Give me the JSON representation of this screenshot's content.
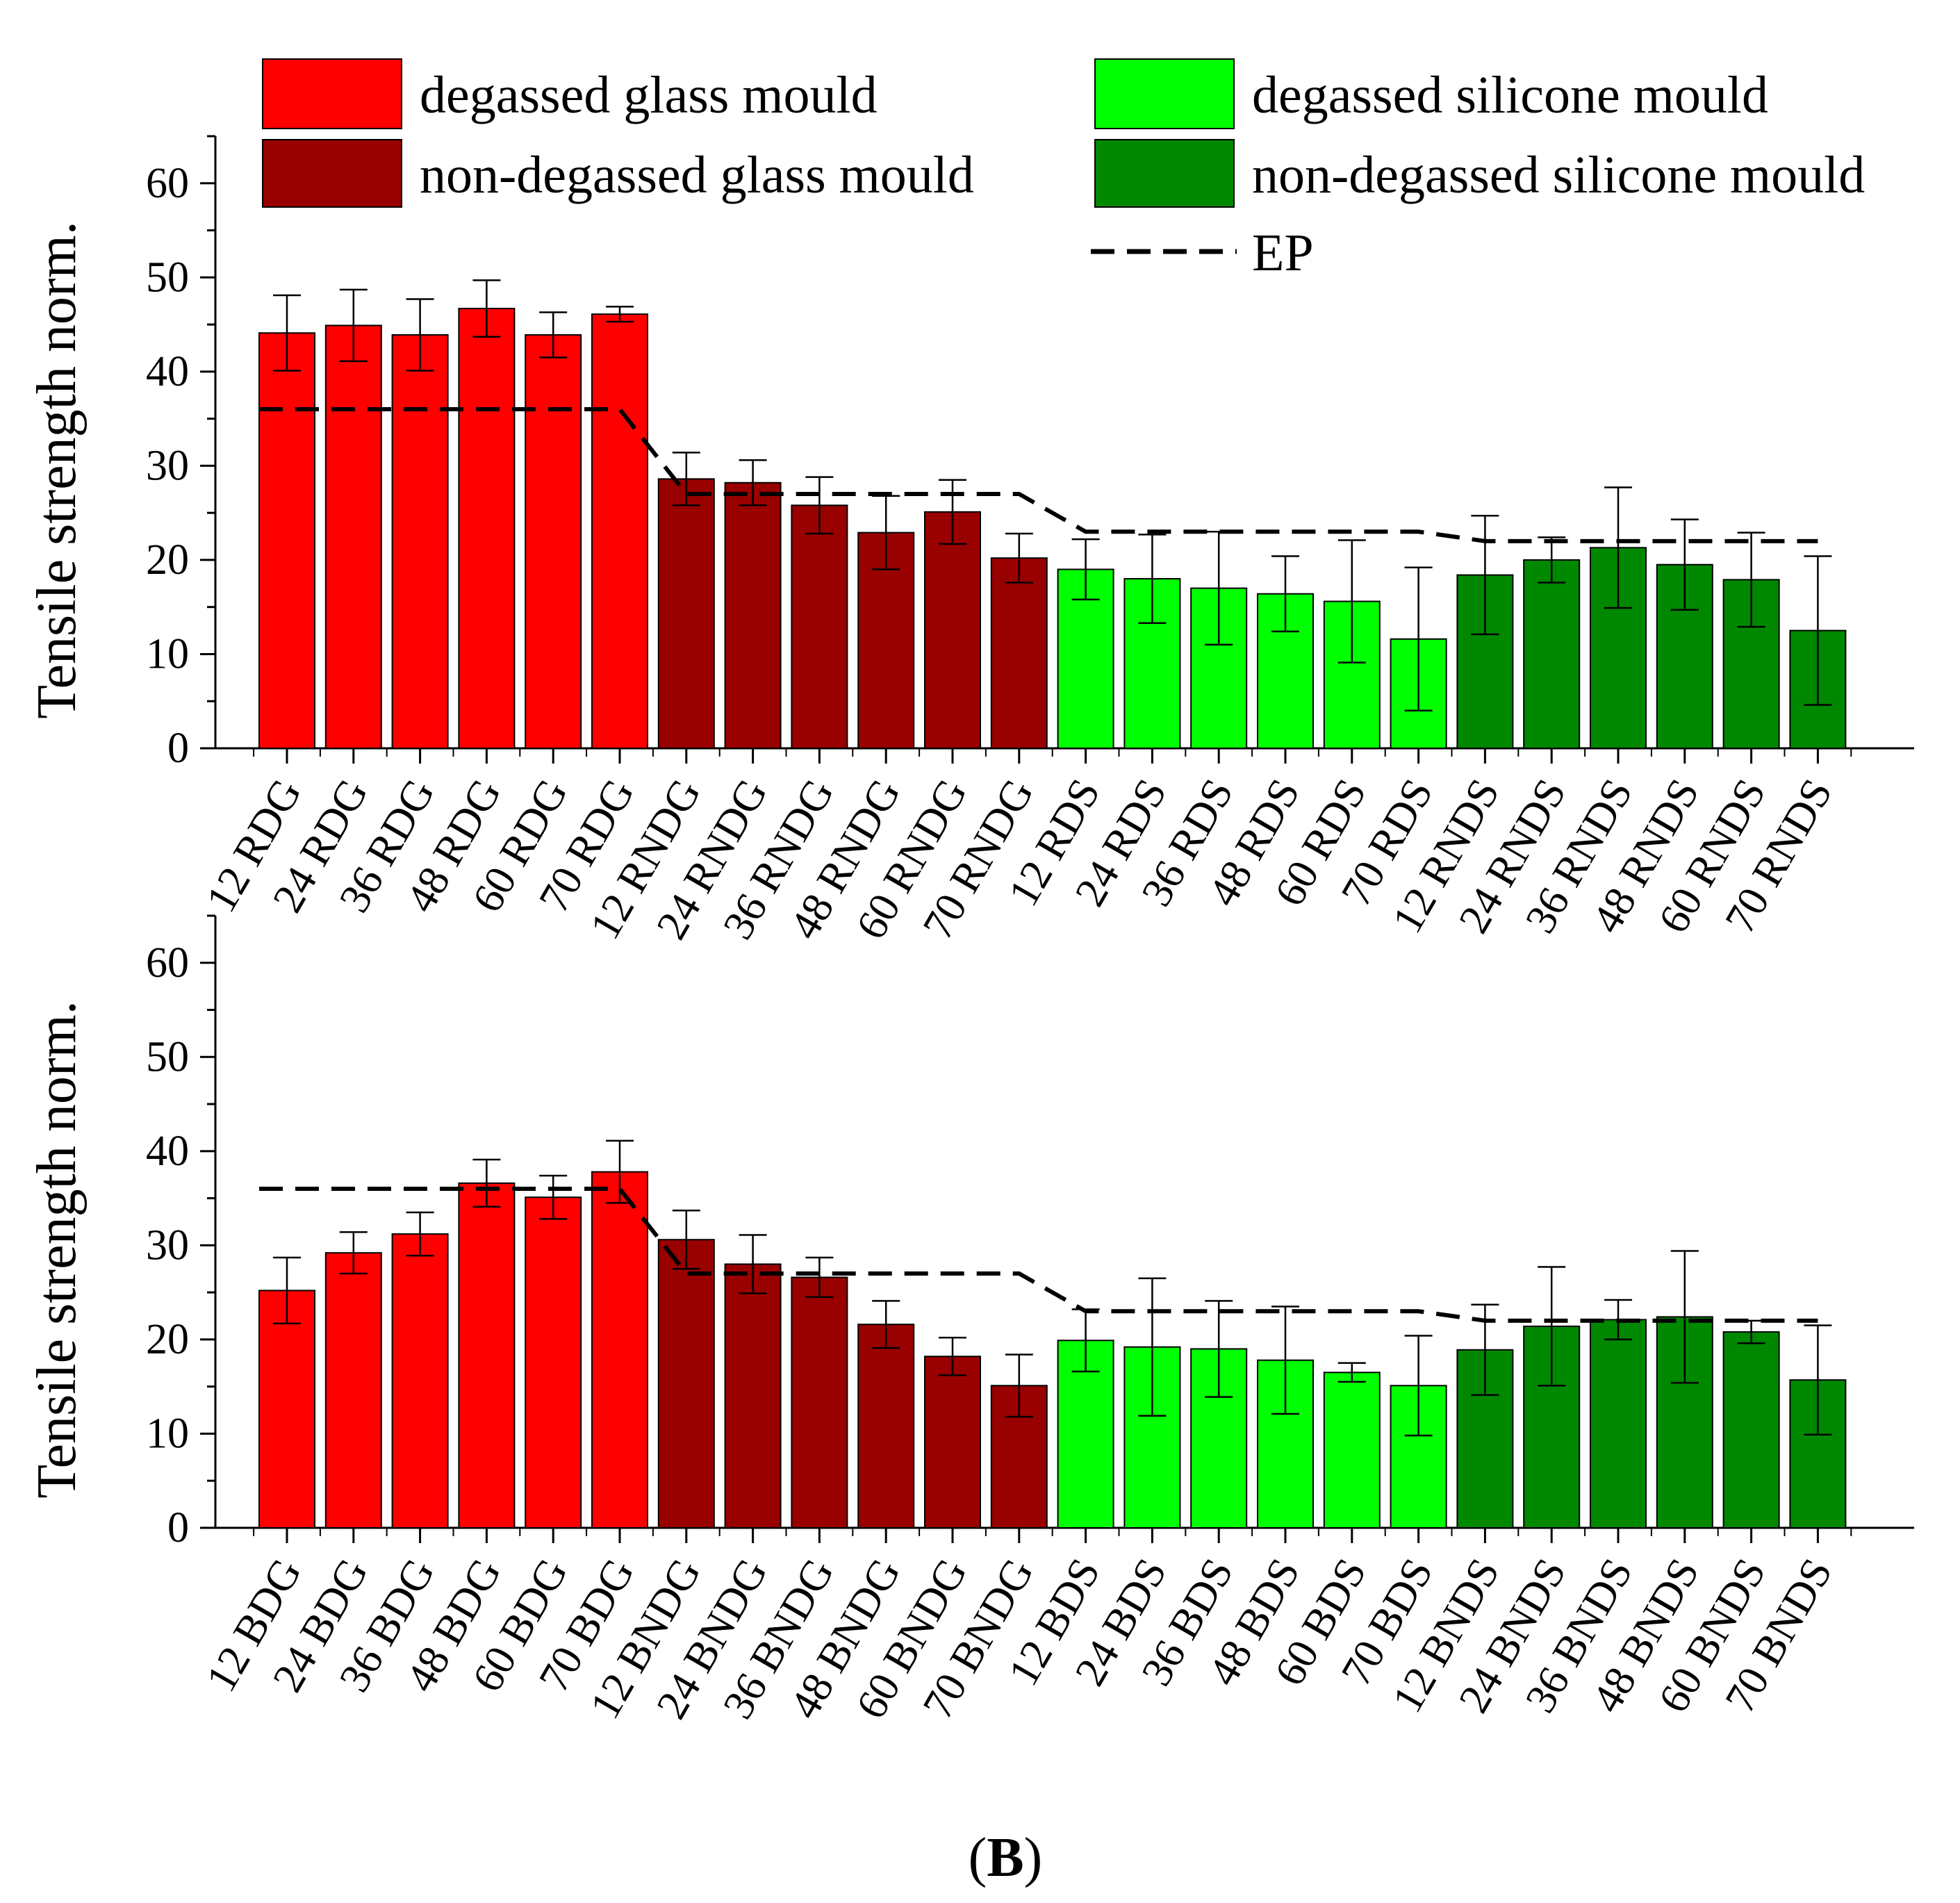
{
  "chart_data": [
    {
      "type": "bar",
      "ylabel": "Tensile strength norm.",
      "ylim": [
        0,
        65
      ],
      "yticks": [
        "0",
        "10",
        "20",
        "30",
        "40",
        "50",
        "60"
      ],
      "grid": false,
      "categories": [
        "12 RDG",
        "24 RDG",
        "36 RDG",
        "48 RDG",
        "60 RDG",
        "70 RDG",
        "12 RNDG",
        "24 RNDG",
        "36 RNDG",
        "48 RNDG",
        "60 RNDG",
        "70 RNDG",
        "12 RDS",
        "24 RDS",
        "36 RDS",
        "48 RDS",
        "60 RDS",
        "70 RDS",
        "12 RNDS",
        "24 RNDS",
        "36 RNDS",
        "48 RNDS",
        "60 RNDS",
        "70 RNDS"
      ],
      "groups": [
        "degassed glass mould",
        "degassed glass mould",
        "degassed glass mould",
        "degassed glass mould",
        "degassed glass mould",
        "degassed glass mould",
        "non-degassed glass mould",
        "non-degassed glass mould",
        "non-degassed glass mould",
        "non-degassed glass mould",
        "non-degassed glass mould",
        "non-degassed glass mould",
        "degassed silicone mould",
        "degassed silicone mould",
        "degassed silicone mould",
        "degassed silicone mould",
        "degassed silicone mould",
        "degassed silicone mould",
        "non-degassed silicone mould",
        "non-degassed silicone mould",
        "non-degassed silicone mould",
        "non-degassed silicone mould",
        "non-degassed silicone mould",
        "non-degassed silicone mould"
      ],
      "values": [
        44.1,
        44.9,
        43.9,
        46.7,
        43.9,
        46.1,
        28.6,
        28.2,
        25.8,
        22.9,
        25.1,
        20.2,
        19.0,
        18.0,
        17.0,
        16.4,
        15.6,
        11.6,
        18.4,
        20.0,
        21.3,
        19.5,
        17.9,
        12.5
      ],
      "errors": [
        4.0,
        3.8,
        3.8,
        3.0,
        2.4,
        0.8,
        2.8,
        2.4,
        3.0,
        3.9,
        3.4,
        2.6,
        3.2,
        4.7,
        6.0,
        4.0,
        6.5,
        7.6,
        6.3,
        2.4,
        6.4,
        4.8,
        5.0,
        7.9
      ],
      "ep_line": [
        36,
        36,
        36,
        36,
        36,
        36,
        27,
        27,
        27,
        27,
        27,
        27,
        23,
        23,
        23,
        23,
        23,
        23,
        22,
        22,
        22,
        22,
        22,
        22
      ]
    },
    {
      "type": "bar",
      "ylabel": "Tensile strength norm.",
      "ylim": [
        0,
        65
      ],
      "yticks": [
        "0",
        "10",
        "20",
        "30",
        "40",
        "50",
        "60"
      ],
      "grid": false,
      "categories": [
        "12 BDG",
        "24 BDG",
        "36 BDG",
        "48 BDG",
        "60 BDG",
        "70 BDG",
        "12 BNDG",
        "24 BNDG",
        "36 BNDG",
        "48 BNDG",
        "60 BNDG",
        "70 BNDG",
        "12 BDS",
        "24 BDS",
        "36 BDS",
        "48 BDS",
        "60 BDS",
        "70 BDS",
        "12 BNDS",
        "24 BNDS",
        "36 BNDS",
        "48 BNDS",
        "60 BNDS",
        "70 BNDS"
      ],
      "groups": [
        "degassed glass mould",
        "degassed glass mould",
        "degassed glass mould",
        "degassed glass mould",
        "degassed glass mould",
        "degassed glass mould",
        "non-degassed glass mould",
        "non-degassed glass mould",
        "non-degassed glass mould",
        "non-degassed glass mould",
        "non-degassed glass mould",
        "non-degassed glass mould",
        "degassed silicone mould",
        "degassed silicone mould",
        "degassed silicone mould",
        "degassed silicone mould",
        "degassed silicone mould",
        "degassed silicone mould",
        "non-degassed silicone mould",
        "non-degassed silicone mould",
        "non-degassed silicone mould",
        "non-degassed silicone mould",
        "non-degassed silicone mould",
        "non-degassed silicone mould"
      ],
      "values": [
        25.2,
        29.2,
        31.2,
        36.6,
        35.1,
        37.8,
        30.6,
        28.0,
        26.6,
        21.6,
        18.2,
        15.1,
        19.9,
        19.2,
        19.0,
        17.8,
        16.5,
        15.1,
        18.9,
        21.4,
        22.1,
        22.4,
        20.8,
        15.7
      ],
      "errors": [
        3.5,
        2.2,
        2.3,
        2.5,
        2.3,
        3.3,
        3.1,
        3.1,
        2.1,
        2.5,
        2.0,
        3.3,
        3.3,
        7.3,
        5.1,
        5.7,
        1.0,
        5.3,
        4.8,
        6.3,
        2.1,
        7.0,
        1.2,
        5.8
      ],
      "ep_line": [
        36,
        36,
        36,
        36,
        36,
        36,
        27,
        27,
        27,
        27,
        27,
        27,
        23,
        23,
        23,
        23,
        23,
        23,
        22,
        22,
        22,
        22,
        22,
        22
      ]
    }
  ],
  "legend": {
    "placement": "top",
    "items": [
      {
        "label": "degassed glass mould",
        "color": "#ff0000",
        "kind": "box"
      },
      {
        "label": "non-degassed glass mould",
        "color": "#990000",
        "kind": "box"
      },
      {
        "label": "degassed silicone mould",
        "color": "#00ff00",
        "kind": "box"
      },
      {
        "label": "non-degassed silicone mould",
        "color": "#008800",
        "kind": "box"
      },
      {
        "label": "EP",
        "color": "#000000",
        "kind": "dashed-line"
      }
    ]
  },
  "group_colors": {
    "degassed glass mould": "#ff0000",
    "non-degassed glass mould": "#990000",
    "degassed silicone mould": "#00ff00",
    "non-degassed silicone mould": "#008800"
  },
  "caption": {
    "open": "(",
    "letter": "B",
    "close": ")"
  }
}
